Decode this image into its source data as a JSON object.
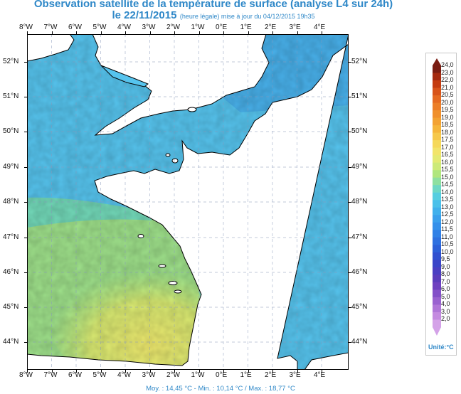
{
  "title": {
    "line1": "Observation satellite de la température de surface (analyse L4 sur 24h)",
    "date": "le 22/11/2015",
    "subtitle": "(heure légale) mise à jour du 04/12/2015 19h35"
  },
  "map": {
    "lon_min": -8.0,
    "lon_max": 4.9,
    "lat_min": 43.2,
    "lat_max": 52.8,
    "lon_ticks": [
      "8°W",
      "7°W",
      "6°W",
      "5°W",
      "4°W",
      "3°W",
      "2°W",
      "1°W",
      "0°E",
      "1°E",
      "2°E",
      "3°E",
      "4°E"
    ],
    "lat_ticks": [
      "52°N",
      "51°N",
      "50°N",
      "49°N",
      "48°N",
      "47°N",
      "46°N",
      "45°N",
      "44°N"
    ],
    "land_color": "#ffffff",
    "coast_color": "#000000"
  },
  "footer": {
    "text": "Moy. : 14,45 °C   -   Min. : 10,14 °C / Max. : 18,77 °C"
  },
  "colorbar": {
    "labels": [
      "24,0",
      "23,0",
      "22,0",
      "21,0",
      "20,5",
      "20,0",
      "19,5",
      "19,0",
      "18,5",
      "18,0",
      "17,5",
      "17,0",
      "16,5",
      "16,0",
      "15,5",
      "15,0",
      "14,5",
      "14,0",
      "13,5",
      "13,0",
      "12,5",
      "12,0",
      "11,5",
      "11,0",
      "10,5",
      "10,0",
      "9,5",
      "9,0",
      "8,0",
      "7,0",
      "6,0",
      "5,0",
      "4,0",
      "3,0",
      "2,0"
    ],
    "colors": [
      "#7a1d12",
      "#a52a10",
      "#c43c10",
      "#d8541a",
      "#e56a22",
      "#ec7e28",
      "#f0902c",
      "#f3a232",
      "#f5b53a",
      "#f6c84a",
      "#f5d85a",
      "#f2e46a",
      "#e4ea72",
      "#cdea78",
      "#b0e67e",
      "#8ee0a0",
      "#6ed8c4",
      "#56cee0",
      "#4ac0ea",
      "#40b0ec",
      "#3aa0ec",
      "#3490ea",
      "#3080e6",
      "#2e70e0",
      "#2c60d8",
      "#3050d0",
      "#3a44c8",
      "#4a3ec2",
      "#5a3cbc",
      "#6e40c0",
      "#8450c8",
      "#9a62d0",
      "#b076d8",
      "#c48ae0",
      "#d4a2e8"
    ],
    "unit_label": "Unité:°C",
    "arrow_symbol": "▲",
    "arrow_top_color": "#7a1d12",
    "arrow_bottom_color": "#d4a2e8"
  }
}
